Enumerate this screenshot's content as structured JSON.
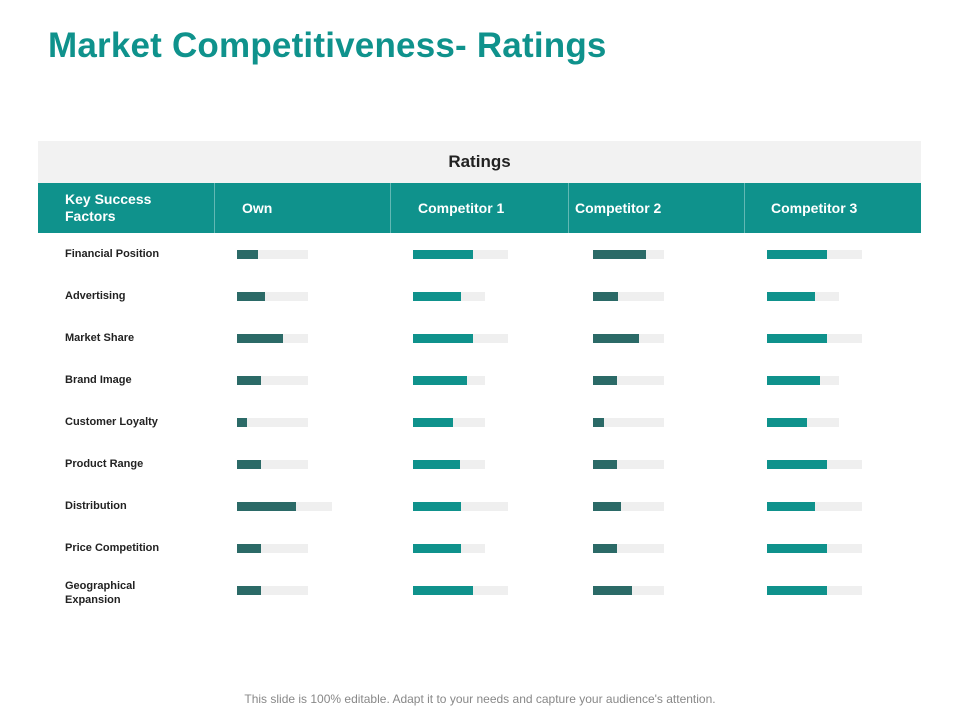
{
  "title": "Market Competitiveness- Ratings",
  "ratings_label": "Ratings",
  "header": {
    "factor_label": "Key Success\nFactors",
    "columns": [
      "Own",
      "Competitor 1",
      "Competitor 2",
      "Competitor 3"
    ]
  },
  "colors": {
    "accent": "#0f928c",
    "dark_bar": "#2b6a67",
    "track": "#efefef"
  },
  "rows": [
    {
      "factor": "Financial Position",
      "ratings": [
        0.29,
        0.63,
        0.75,
        0.63
      ]
    },
    {
      "factor": "Advertising",
      "ratings": [
        0.4,
        0.67,
        0.35,
        0.66
      ]
    },
    {
      "factor": "Market Share",
      "ratings": [
        0.65,
        0.63,
        0.65,
        0.63
      ]
    },
    {
      "factor": "Brand Image",
      "ratings": [
        0.34,
        0.75,
        0.34,
        0.74
      ]
    },
    {
      "factor": "Customer Loyalty",
      "ratings": [
        0.14,
        0.56,
        0.15,
        0.55
      ]
    },
    {
      "factor": "Product Range",
      "ratings": [
        0.34,
        0.65,
        0.34,
        0.63
      ]
    },
    {
      "factor": "Distribution",
      "ratings": [
        0.62,
        0.5,
        0.39,
        0.5
      ]
    },
    {
      "factor": "Price Competition",
      "ratings": [
        0.34,
        0.67,
        0.34,
        0.63
      ]
    },
    {
      "factor": "Geographical\nExpansion",
      "ratings": [
        0.34,
        0.63,
        0.55,
        0.63
      ]
    }
  ],
  "footer": "This slide is 100% editable. Adapt it to your needs and capture your audience's attention."
}
